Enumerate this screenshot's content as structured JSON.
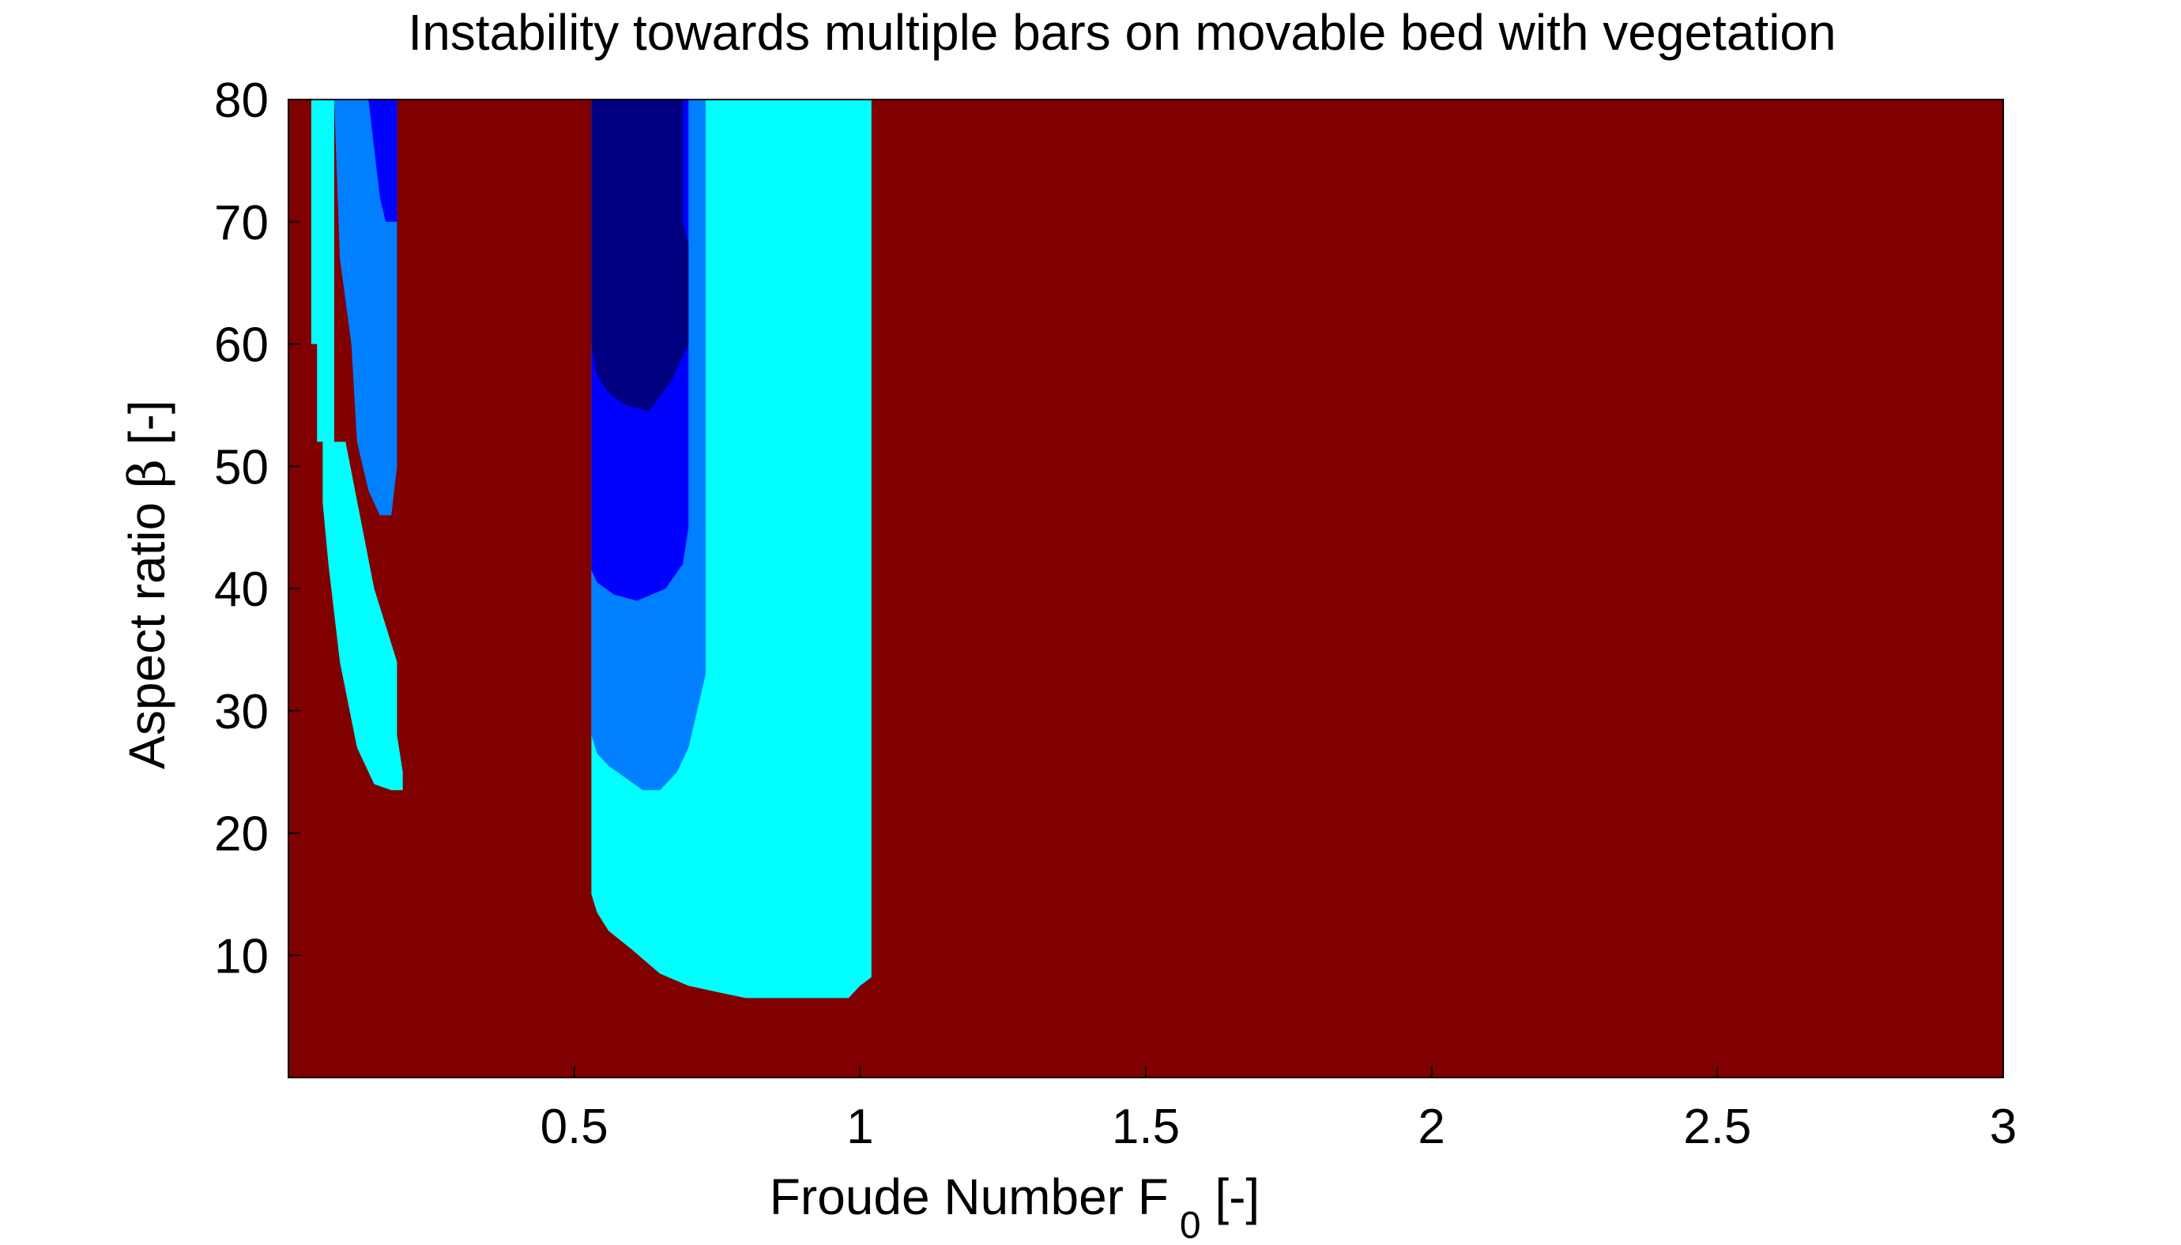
{
  "chart_data": {
    "type": "heatmap",
    "title": "Instability towards multiple bars on movable bed with vegetation",
    "xlabel": {
      "text": "Froude Number  F",
      "subscript": "0",
      "suffix": " [-]"
    },
    "ylabel": {
      "text": "Aspect ratio  ",
      "symbol": "β",
      "suffix": " [-]"
    },
    "xlim": [
      0.0,
      3.0
    ],
    "ylim": [
      0,
      80
    ],
    "xticks": [
      0.5,
      1,
      1.5,
      2,
      2.5,
      3
    ],
    "xtick_labels": [
      "0.5",
      "1",
      "1.5",
      "2",
      "2.5",
      "3"
    ],
    "yticks": [
      10,
      20,
      30,
      40,
      50,
      60,
      70,
      80
    ],
    "ytick_labels": [
      "10",
      "20",
      "30",
      "40",
      "50",
      "60",
      "70",
      "80"
    ],
    "grid": false,
    "legend": "none",
    "colors": {
      "background_stable": "#800000",
      "level_1": "#00ffff",
      "level_2": "#0080ff",
      "level_3": "#0000ff",
      "level_4": "#000080",
      "frame": "#000000"
    },
    "regions": [
      {
        "name": "left-cyan-band",
        "level": 1,
        "color": "#00ffff",
        "boundary": [
          [
            0.04,
            80
          ],
          [
            0.08,
            80
          ],
          [
            0.08,
            52
          ],
          [
            0.1,
            52
          ],
          [
            0.15,
            40
          ],
          [
            0.19,
            34
          ],
          [
            0.19,
            28
          ],
          [
            0.2,
            25
          ],
          [
            0.2,
            23.5
          ],
          [
            0.18,
            23.5
          ],
          [
            0.15,
            24
          ],
          [
            0.12,
            27
          ],
          [
            0.09,
            34
          ],
          [
            0.07,
            42
          ],
          [
            0.06,
            47
          ],
          [
            0.06,
            52
          ],
          [
            0.05,
            52
          ],
          [
            0.05,
            60
          ],
          [
            0.04,
            60
          ]
        ]
      },
      {
        "name": "left-azure-band",
        "level": 2,
        "color": "#0080ff",
        "boundary": [
          [
            0.08,
            80
          ],
          [
            0.19,
            80
          ],
          [
            0.19,
            50
          ],
          [
            0.18,
            46
          ],
          [
            0.16,
            46
          ],
          [
            0.14,
            48
          ],
          [
            0.12,
            52
          ],
          [
            0.11,
            60
          ],
          [
            0.09,
            67
          ],
          [
            0.08,
            80
          ]
        ]
      },
      {
        "name": "left-blue-band",
        "level": 3,
        "color": "#0000ff",
        "boundary": [
          [
            0.14,
            80
          ],
          [
            0.19,
            80
          ],
          [
            0.19,
            70
          ],
          [
            0.17,
            70
          ],
          [
            0.16,
            72
          ],
          [
            0.15,
            76
          ],
          [
            0.14,
            80
          ]
        ]
      },
      {
        "name": "main-cyan-region",
        "level": 1,
        "color": "#00ffff",
        "boundary": [
          [
            0.53,
            80
          ],
          [
            1.02,
            80
          ],
          [
            1.02,
            8.2
          ],
          [
            1.0,
            7.5
          ],
          [
            0.98,
            6.5
          ],
          [
            0.9,
            6.5
          ],
          [
            0.8,
            6.5
          ],
          [
            0.75,
            7
          ],
          [
            0.7,
            7.5
          ],
          [
            0.65,
            8.5
          ],
          [
            0.6,
            10.5
          ],
          [
            0.56,
            12
          ],
          [
            0.54,
            13.5
          ],
          [
            0.53,
            15
          ],
          [
            0.53,
            20
          ]
        ]
      },
      {
        "name": "main-azure-region",
        "level": 2,
        "color": "#0080ff",
        "boundary": [
          [
            0.53,
            80
          ],
          [
            0.73,
            80
          ],
          [
            0.73,
            33
          ],
          [
            0.71,
            29
          ],
          [
            0.7,
            27
          ],
          [
            0.68,
            25
          ],
          [
            0.65,
            23.5
          ],
          [
            0.62,
            23.5
          ],
          [
            0.59,
            24.5
          ],
          [
            0.56,
            25.5
          ],
          [
            0.54,
            26.5
          ],
          [
            0.53,
            28
          ]
        ]
      },
      {
        "name": "main-blue-region",
        "level": 3,
        "color": "#0000ff",
        "boundary": [
          [
            0.53,
            80
          ],
          [
            0.7,
            80
          ],
          [
            0.7,
            45
          ],
          [
            0.69,
            42
          ],
          [
            0.66,
            40
          ],
          [
            0.61,
            39
          ],
          [
            0.57,
            39.5
          ],
          [
            0.54,
            40.5
          ],
          [
            0.53,
            41.5
          ]
        ]
      },
      {
        "name": "main-navy-region",
        "level": 4,
        "color": "#000080",
        "boundary": [
          [
            0.53,
            80
          ],
          [
            0.69,
            80
          ],
          [
            0.69,
            70
          ],
          [
            0.7,
            68
          ],
          [
            0.7,
            60
          ],
          [
            0.67,
            57
          ],
          [
            0.63,
            54.5
          ],
          [
            0.59,
            55
          ],
          [
            0.56,
            56
          ],
          [
            0.54,
            57.5
          ],
          [
            0.53,
            60
          ]
        ]
      }
    ]
  }
}
